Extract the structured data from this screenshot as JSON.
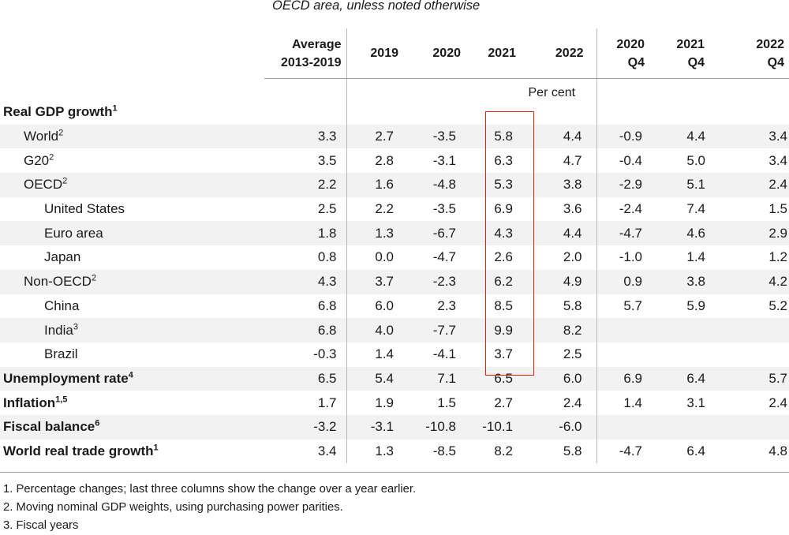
{
  "subtitle": "OECD area, unless noted otherwise",
  "columns": [
    {
      "line1": "Average",
      "line2": "2013-2019"
    },
    {
      "line1": "",
      "line2": "2019"
    },
    {
      "line1": "",
      "line2": "2020"
    },
    {
      "line1": "",
      "line2": "2021"
    },
    {
      "line1": "",
      "line2": "2022"
    },
    {
      "line1": "2020",
      "line2": "Q4"
    },
    {
      "line1": "2021",
      "line2": "Q4"
    },
    {
      "line1": "2022",
      "line2": "Q4"
    }
  ],
  "unit_label": "Per cent",
  "rows": [
    {
      "label": "Real GDP growth",
      "sup": "1",
      "values": [
        "",
        "",
        "",
        "",
        "",
        "",
        "",
        ""
      ]
    },
    {
      "label": "World",
      "sup": "2",
      "values": [
        "3.3",
        "2.7",
        "-3.5",
        "5.8",
        "4.4",
        "-0.9",
        "4.4",
        "3.4"
      ]
    },
    {
      "label": "G20",
      "sup": "2",
      "values": [
        "3.5",
        "2.8",
        "-3.1",
        "6.3",
        "4.7",
        "-0.4",
        "5.0",
        "3.4"
      ]
    },
    {
      "label": "OECD",
      "sup": "2",
      "values": [
        "2.2",
        "1.6",
        "-4.8",
        "5.3",
        "3.8",
        "-2.9",
        "5.1",
        "2.4"
      ]
    },
    {
      "label": "United States",
      "sup": "",
      "values": [
        "2.5",
        "2.2",
        "-3.5",
        "6.9",
        "3.6",
        "-2.4",
        "7.4",
        "1.5"
      ]
    },
    {
      "label": "Euro area",
      "sup": "",
      "values": [
        "1.8",
        "1.3",
        "-6.7",
        "4.3",
        "4.4",
        "-4.7",
        "4.6",
        "2.9"
      ]
    },
    {
      "label": "Japan",
      "sup": "",
      "values": [
        "0.8",
        "0.0",
        "-4.7",
        "2.6",
        "2.0",
        "-1.0",
        "1.4",
        "1.2"
      ]
    },
    {
      "label": "Non-OECD",
      "sup": "2",
      "values": [
        "4.3",
        "3.7",
        "-2.3",
        "6.2",
        "4.9",
        "0.9",
        "3.8",
        "4.2"
      ]
    },
    {
      "label": "China",
      "sup": "",
      "values": [
        "6.8",
        "6.0",
        "2.3",
        "8.5",
        "5.8",
        "5.7",
        "5.9",
        "5.2"
      ]
    },
    {
      "label": "India",
      "sup": "3",
      "values": [
        "6.8",
        "4.0",
        "-7.7",
        "9.9",
        "8.2",
        "",
        "",
        ""
      ]
    },
    {
      "label": "Brazil",
      "sup": "",
      "values": [
        "-0.3",
        "1.4",
        "-4.1",
        "3.7",
        "2.5",
        "",
        "",
        ""
      ]
    },
    {
      "label": "Unemployment rate",
      "sup": "4",
      "values": [
        "6.5",
        "5.4",
        "7.1",
        "6.5",
        "6.0",
        "6.9",
        "6.4",
        "5.7"
      ]
    },
    {
      "label": "Inflation",
      "sup": "1,5",
      "values": [
        "1.7",
        "1.9",
        "1.5",
        "2.7",
        "2.4",
        "1.4",
        "3.1",
        "2.4"
      ]
    },
    {
      "label": "Fiscal balance",
      "sup": "6",
      "values": [
        "-3.2",
        "-3.1",
        "-10.8",
        "-10.1",
        "-6.0",
        "",
        "",
        ""
      ]
    },
    {
      "label": "World real trade growth",
      "sup": "1",
      "values": [
        "3.4",
        "1.3",
        "-8.5",
        "8.2",
        "5.8",
        "-4.7",
        "6.4",
        "4.8"
      ]
    }
  ],
  "footnotes": [
    "1.  Percentage changes; last three columns show the change over a year earlier.",
    "2.  Moving nominal GDP weights, using purchasing power parities.",
    "3.  Fiscal years"
  ],
  "colors": {
    "highlight_box": "#e2231a",
    "shade": "#f2f2f2"
  }
}
